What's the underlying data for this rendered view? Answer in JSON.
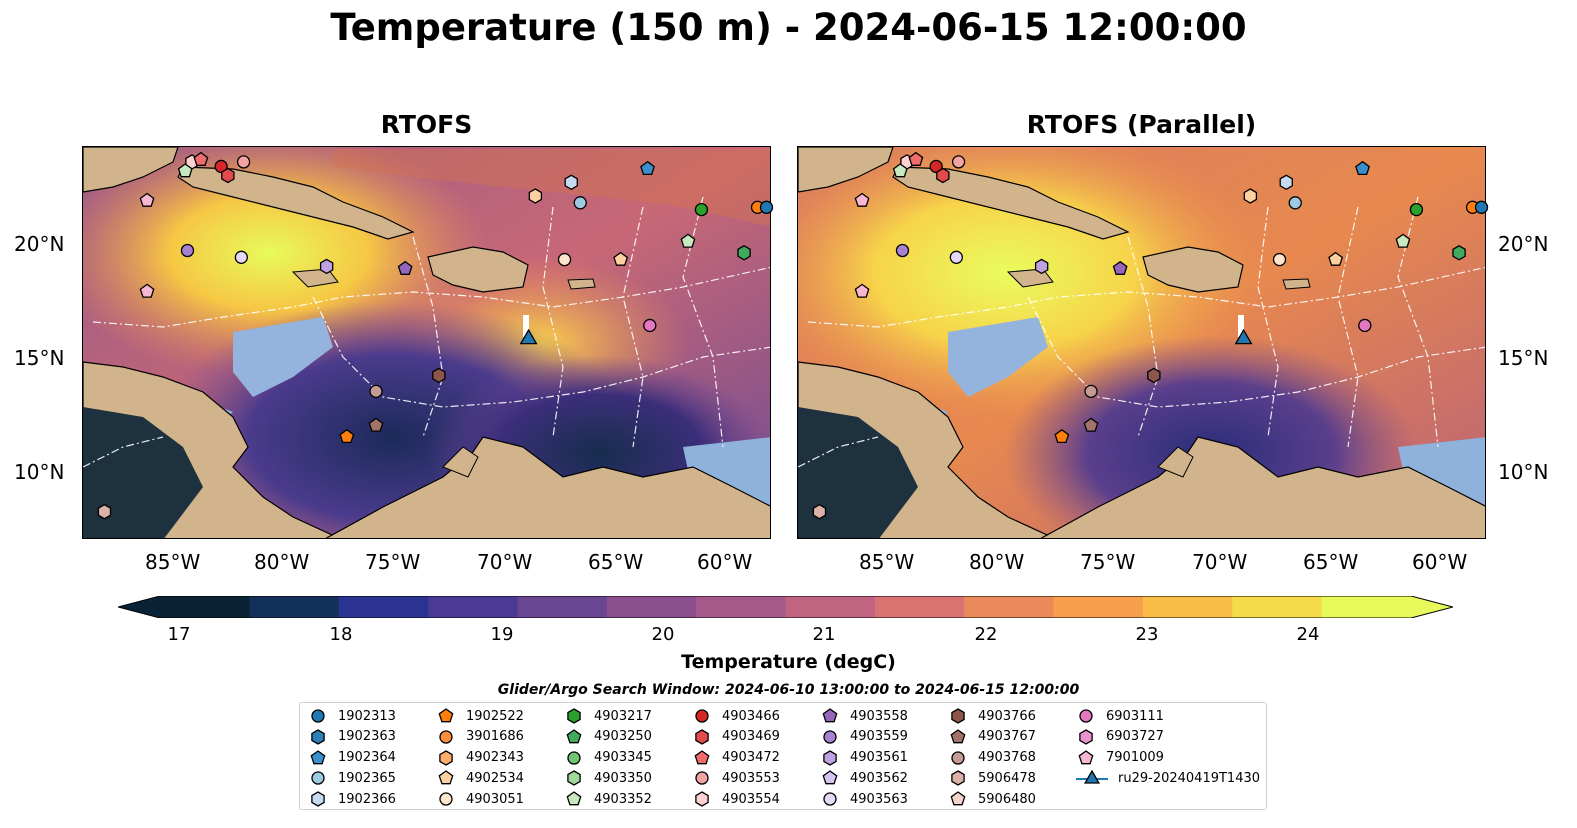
{
  "title": "Temperature (150 m) - 2024-06-15 12:00:00",
  "panels": [
    {
      "title": "RTOFS"
    },
    {
      "title": "RTOFS (Parallel)"
    }
  ],
  "axes": {
    "x_ticks": [
      "85°W",
      "80°W",
      "75°W",
      "70°W",
      "65°W",
      "60°W"
    ],
    "y_ticks": [
      "20°N",
      "15°N",
      "10°N"
    ],
    "lon_range": [
      -89,
      -58.3
    ],
    "lat_range": [
      7.2,
      24.5
    ]
  },
  "map_labels": {
    "isobath": "-1000"
  },
  "colorbar": {
    "label": "Temperature (degC)",
    "ticks": [
      "17",
      "18",
      "19",
      "20",
      "21",
      "22",
      "23",
      "24"
    ],
    "range": [
      16.5,
      24.75
    ],
    "colormap": "thermal",
    "extend": "both"
  },
  "legend": {
    "title": "Glider/Argo Search Window: 2024-06-10 13:00:00 to 2024-06-15 12:00:00",
    "items": [
      {
        "label": "1902313",
        "shape": "circle",
        "color": "#1f77b4"
      },
      {
        "label": "1902363",
        "shape": "hexagon",
        "color": "#2c7fb8"
      },
      {
        "label": "1902364",
        "shape": "pentagon",
        "color": "#3a8fcd"
      },
      {
        "label": "1902365",
        "shape": "circle",
        "color": "#9ecae1"
      },
      {
        "label": "1902366",
        "shape": "hexagon",
        "color": "#c6dbef"
      },
      {
        "label": "1902522",
        "shape": "pentagon",
        "color": "#ff7f0e"
      },
      {
        "label": "3901686",
        "shape": "circle",
        "color": "#fd8d3c"
      },
      {
        "label": "4902343",
        "shape": "hexagon",
        "color": "#fdae6b"
      },
      {
        "label": "4902534",
        "shape": "pentagon",
        "color": "#fdd0a2"
      },
      {
        "label": "4903051",
        "shape": "circle",
        "color": "#fee6ce"
      },
      {
        "label": "4903217",
        "shape": "hexagon",
        "color": "#2ca02c"
      },
      {
        "label": "4903250",
        "shape": "pentagon",
        "color": "#41ab5d"
      },
      {
        "label": "4903345",
        "shape": "circle",
        "color": "#74c476"
      },
      {
        "label": "4903350",
        "shape": "hexagon",
        "color": "#a1d99b"
      },
      {
        "label": "4903352",
        "shape": "pentagon",
        "color": "#c7e9c0"
      },
      {
        "label": "4903466",
        "shape": "circle",
        "color": "#d62728"
      },
      {
        "label": "4903469",
        "shape": "hexagon",
        "color": "#e34a4b"
      },
      {
        "label": "4903472",
        "shape": "pentagon",
        "color": "#ef6b6c"
      },
      {
        "label": "4903553",
        "shape": "circle",
        "color": "#f4a3a3"
      },
      {
        "label": "4903554",
        "shape": "hexagon",
        "color": "#fbd1d1"
      },
      {
        "label": "4903558",
        "shape": "pentagon",
        "color": "#9467bd"
      },
      {
        "label": "4903559",
        "shape": "circle",
        "color": "#a882d0"
      },
      {
        "label": "4903561",
        "shape": "hexagon",
        "color": "#bfa3e0"
      },
      {
        "label": "4903562",
        "shape": "pentagon",
        "color": "#d6c3ef"
      },
      {
        "label": "4903563",
        "shape": "circle",
        "color": "#e6d8f7"
      },
      {
        "label": "4903766",
        "shape": "hexagon",
        "color": "#8c564b"
      },
      {
        "label": "4903767",
        "shape": "pentagon",
        "color": "#a3736a"
      },
      {
        "label": "4903768",
        "shape": "circle",
        "color": "#c49c94"
      },
      {
        "label": "5906478",
        "shape": "hexagon",
        "color": "#dbb1a8"
      },
      {
        "label": "5906480",
        "shape": "pentagon",
        "color": "#f3d4cc"
      },
      {
        "label": "6903111",
        "shape": "circle",
        "color": "#e377c2"
      },
      {
        "label": "6903727",
        "shape": "hexagon",
        "color": "#ec93cf"
      },
      {
        "label": "7901009",
        "shape": "pentagon",
        "color": "#f7b6d2"
      },
      {
        "label": "ru29-20240419T1430",
        "shape": "triangle-line",
        "color": "#1f77b4"
      }
    ]
  },
  "markers": [
    {
      "lon": -84.1,
      "lat": 23.8,
      "shape": "hexagon",
      "color": "#fbd1d1"
    },
    {
      "lon": -84.4,
      "lat": 23.4,
      "shape": "pentagon",
      "color": "#c7e9c0"
    },
    {
      "lon": -83.7,
      "lat": 23.9,
      "shape": "pentagon",
      "color": "#ef6b6c"
    },
    {
      "lon": -82.8,
      "lat": 23.6,
      "shape": "circle",
      "color": "#d62728"
    },
    {
      "lon": -82.5,
      "lat": 23.2,
      "shape": "hexagon",
      "color": "#e34a4b"
    },
    {
      "lon": -81.8,
      "lat": 23.8,
      "shape": "circle",
      "color": "#f4a3a3"
    },
    {
      "lon": -86.1,
      "lat": 22.1,
      "shape": "pentagon",
      "color": "#f7b6d2"
    },
    {
      "lon": -84.3,
      "lat": 19.9,
      "shape": "circle",
      "color": "#a882d0"
    },
    {
      "lon": -81.9,
      "lat": 19.6,
      "shape": "circle",
      "color": "#e6d8f7"
    },
    {
      "lon": -86.1,
      "lat": 18.1,
      "shape": "pentagon",
      "color": "#f7b6d2"
    },
    {
      "lon": -78.1,
      "lat": 19.2,
      "shape": "hexagon",
      "color": "#bfa3e0"
    },
    {
      "lon": -74.6,
      "lat": 19.1,
      "shape": "pentagon",
      "color": "#9467bd"
    },
    {
      "lon": -68.8,
      "lat": 22.3,
      "shape": "hexagon",
      "color": "#fdd0a2"
    },
    {
      "lon": -67.2,
      "lat": 22.9,
      "shape": "hexagon",
      "color": "#c6dbef"
    },
    {
      "lon": -66.8,
      "lat": 22.0,
      "shape": "circle",
      "color": "#9ecae1"
    },
    {
      "lon": -63.8,
      "lat": 23.5,
      "shape": "pentagon",
      "color": "#3a8fcd"
    },
    {
      "lon": -61.4,
      "lat": 21.7,
      "shape": "circle",
      "color": "#2ca02c"
    },
    {
      "lon": -58.9,
      "lat": 21.8,
      "shape": "circle",
      "color": "#ff7f0e"
    },
    {
      "lon": -58.5,
      "lat": 21.8,
      "shape": "circle",
      "color": "#1f77b4"
    },
    {
      "lon": -62.0,
      "lat": 20.3,
      "shape": "pentagon",
      "color": "#c7e9c0"
    },
    {
      "lon": -59.5,
      "lat": 19.8,
      "shape": "hexagon",
      "color": "#41ab5d"
    },
    {
      "lon": -67.5,
      "lat": 19.5,
      "shape": "circle",
      "color": "#fee6ce"
    },
    {
      "lon": -65.0,
      "lat": 19.5,
      "shape": "pentagon",
      "color": "#fdd0a2"
    },
    {
      "lon": -63.7,
      "lat": 16.6,
      "shape": "circle",
      "color": "#e377c2"
    },
    {
      "lon": -75.9,
      "lat": 13.7,
      "shape": "circle",
      "color": "#c49c94"
    },
    {
      "lon": -73.1,
      "lat": 14.4,
      "shape": "hexagon",
      "color": "#8c564b"
    },
    {
      "lon": -75.9,
      "lat": 12.2,
      "shape": "pentagon",
      "color": "#a3736a"
    },
    {
      "lon": -77.2,
      "lat": 11.7,
      "shape": "pentagon",
      "color": "#ff7f0e"
    },
    {
      "lon": -88.0,
      "lat": 8.4,
      "shape": "hexagon",
      "color": "#dbb1a8"
    },
    {
      "lon": -69.1,
      "lat": 16.0,
      "shape": "triangle",
      "color": "#1f77b4"
    }
  ]
}
